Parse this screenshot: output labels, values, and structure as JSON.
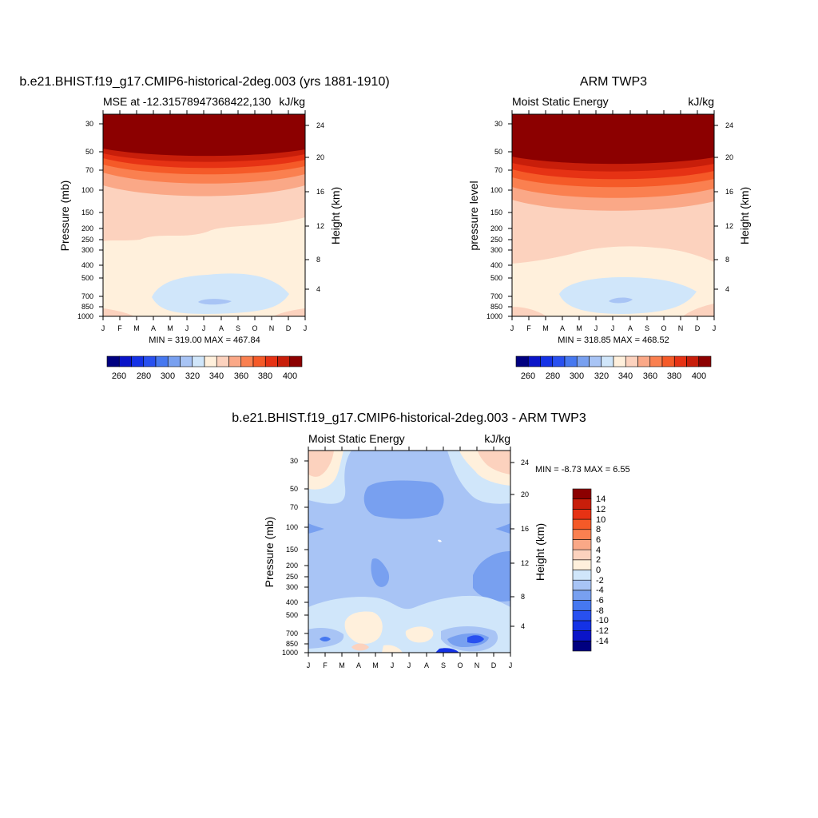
{
  "colors": {
    "mse_scale": [
      "#000080",
      "#0a14c8",
      "#1432e6",
      "#2850f0",
      "#4678f0",
      "#78a0f0",
      "#a8c4f5",
      "#d0e6fa",
      "#fff0dc",
      "#fcd2be",
      "#faa887",
      "#fa8050",
      "#f55a28",
      "#e63214",
      "#c81e0a",
      "#8c0000"
    ],
    "diff_scale": [
      "#000080",
      "#0a14c8",
      "#1432e6",
      "#2850f0",
      "#4678f0",
      "#78a0f0",
      "#a8c4f5",
      "#d0e6fa",
      "#fff0dc",
      "#fcd2be",
      "#faa887",
      "#fa8050",
      "#f55a28",
      "#e63214",
      "#c81e0a",
      "#8c0000"
    ]
  },
  "chart_data": [
    {
      "type": "heatmap",
      "panel_title": "b.e21.BHIST.f19_g17.CMIP6-historical-2deg.003 (yrs 1881-1910)",
      "left_string": "MSE at -12.31578947368422,130",
      "right_string": "kJ/kg",
      "ylabel": "Pressure (mb)",
      "ylabel_right": "Height (km)",
      "x_ticks": [
        "J",
        "F",
        "M",
        "A",
        "M",
        "J",
        "J",
        "A",
        "S",
        "O",
        "N",
        "D",
        "J"
      ],
      "y_ticks": [
        "30",
        "50",
        "70",
        "100",
        "150",
        "200",
        "250",
        "300",
        "400",
        "500",
        "700",
        "850",
        "1000"
      ],
      "y_ticks_right": [
        "24",
        "20",
        "16",
        "12",
        "8",
        "4"
      ],
      "min_max_text": "MIN = 319.00 MAX = 467.84",
      "colorbar_levels": [
        250,
        260,
        270,
        280,
        290,
        300,
        310,
        320,
        330,
        340,
        350,
        360,
        370,
        380,
        390,
        400
      ],
      "colorbar_labels": [
        "260",
        "280",
        "300",
        "320",
        "340",
        "360",
        "380",
        "400"
      ],
      "min": 319.0,
      "max": 467.84
    },
    {
      "type": "heatmap",
      "panel_title": "ARM TWP3",
      "left_string": "Moist Static Energy",
      "right_string": "kJ/kg",
      "ylabel": "pressure level",
      "ylabel_right": "Height (km)",
      "x_ticks": [
        "J",
        "F",
        "M",
        "A",
        "M",
        "J",
        "J",
        "A",
        "S",
        "O",
        "N",
        "D",
        "J"
      ],
      "y_ticks": [
        "30",
        "50",
        "70",
        "100",
        "150",
        "200",
        "250",
        "300",
        "400",
        "500",
        "700",
        "850",
        "1000"
      ],
      "y_ticks_right": [
        "24",
        "20",
        "16",
        "12",
        "8",
        "4"
      ],
      "min_max_text": "MIN = 318.85 MAX = 468.52",
      "colorbar_levels": [
        250,
        260,
        270,
        280,
        290,
        300,
        310,
        320,
        330,
        340,
        350,
        360,
        370,
        380,
        390,
        400
      ],
      "colorbar_labels": [
        "260",
        "280",
        "300",
        "320",
        "340",
        "360",
        "380",
        "400"
      ],
      "min": 318.85,
      "max": 468.52
    },
    {
      "type": "heatmap",
      "panel_title": "b.e21.BHIST.f19_g17.CMIP6-historical-2deg.003 - ARM TWP3",
      "left_string": "Moist Static Energy",
      "right_string": "kJ/kg",
      "ylabel": "Pressure (mb)",
      "ylabel_right": "Height (km)",
      "x_ticks": [
        "J",
        "F",
        "M",
        "A",
        "M",
        "J",
        "J",
        "A",
        "S",
        "O",
        "N",
        "D",
        "J"
      ],
      "y_ticks": [
        "30",
        "50",
        "70",
        "100",
        "150",
        "200",
        "250",
        "300",
        "400",
        "500",
        "700",
        "850",
        "1000"
      ],
      "y_ticks_right": [
        "24",
        "20",
        "16",
        "12",
        "8",
        "4"
      ],
      "min_max_text": "MIN =  -8.73 MAX =   6.55",
      "colorbar_labels": [
        "14",
        "12",
        "10",
        "8",
        "6",
        "4",
        "2",
        "0",
        "-2",
        "-4",
        "-6",
        "-8",
        "-10",
        "-12",
        "-14"
      ],
      "min": -8.73,
      "max": 6.55
    }
  ]
}
